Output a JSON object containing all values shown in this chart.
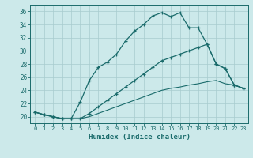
{
  "xlabel": "Humidex (Indice chaleur)",
  "bg_color": "#cce9ea",
  "grid_color": "#a8ccce",
  "line_color": "#1a6b6b",
  "xlim": [
    -0.5,
    23.5
  ],
  "ylim": [
    19.0,
    37.0
  ],
  "xticks": [
    0,
    1,
    2,
    3,
    4,
    5,
    6,
    7,
    8,
    9,
    10,
    11,
    12,
    13,
    14,
    15,
    16,
    17,
    18,
    19,
    20,
    21,
    22,
    23
  ],
  "yticks": [
    20,
    22,
    24,
    26,
    28,
    30,
    32,
    34,
    36
  ],
  "curve1_x": [
    0,
    1,
    2,
    3,
    4,
    5,
    6,
    7,
    8,
    9,
    10,
    11,
    12,
    13,
    14,
    15,
    16,
    17,
    18,
    19,
    20,
    21,
    22,
    23
  ],
  "curve1_y": [
    20.7,
    20.3,
    20.0,
    19.7,
    19.7,
    22.2,
    25.5,
    27.5,
    28.3,
    29.5,
    31.5,
    33.0,
    34.0,
    35.3,
    35.8,
    35.2,
    35.8,
    33.5,
    33.5,
    31.0,
    28.0,
    27.3,
    24.8,
    24.3
  ],
  "curve2_x": [
    0,
    1,
    2,
    3,
    4,
    5,
    6,
    7,
    8,
    9,
    10,
    11,
    12,
    13,
    14,
    15,
    16,
    17,
    18,
    19,
    20,
    21,
    22,
    23
  ],
  "curve2_y": [
    20.7,
    20.3,
    20.0,
    19.7,
    19.7,
    19.7,
    20.5,
    21.5,
    22.5,
    23.5,
    24.5,
    25.5,
    26.5,
    27.5,
    28.5,
    29.0,
    29.5,
    30.0,
    30.5,
    31.0,
    28.0,
    27.3,
    24.8,
    24.3
  ],
  "curve3_x": [
    0,
    1,
    2,
    3,
    4,
    5,
    6,
    7,
    8,
    9,
    10,
    11,
    12,
    13,
    14,
    15,
    16,
    17,
    18,
    19,
    20,
    21,
    22,
    23
  ],
  "curve3_y": [
    20.7,
    20.3,
    20.0,
    19.7,
    19.7,
    19.7,
    20.0,
    20.5,
    21.0,
    21.5,
    22.0,
    22.5,
    23.0,
    23.5,
    24.0,
    24.3,
    24.5,
    24.8,
    25.0,
    25.3,
    25.5,
    25.0,
    24.8,
    24.3
  ]
}
